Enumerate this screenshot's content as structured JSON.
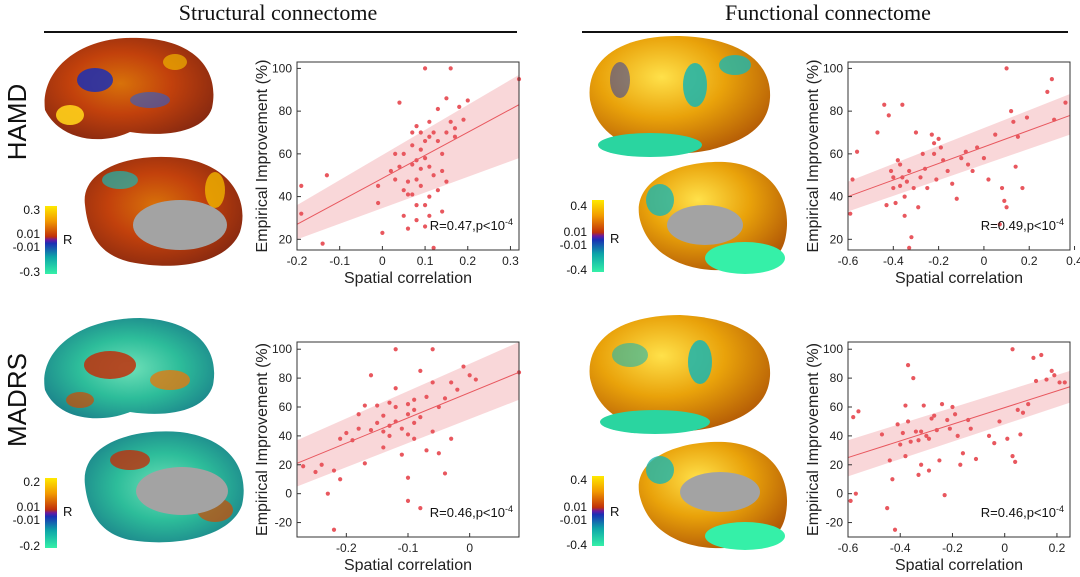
{
  "headers": {
    "structural": "Structural connectome",
    "functional": "Functional connectome"
  },
  "rows": {
    "hamd": "HAMD",
    "madrs": "MADRS"
  },
  "colorbars": [
    {
      "id": "s-hamd",
      "top": "0.3",
      "upper": "0.01",
      "lower": "-0.01",
      "bottom": "-0.3",
      "label": "R"
    },
    {
      "id": "f-hamd",
      "top": "0.4",
      "upper": "0.01",
      "lower": "-0.01",
      "bottom": "-0.4",
      "label": "R"
    },
    {
      "id": "s-madrs",
      "top": "0.2",
      "upper": "0.01",
      "lower": "-0.01",
      "bottom": "-0.2",
      "label": "R"
    },
    {
      "id": "f-madrs",
      "top": "0.4",
      "upper": "0.01",
      "lower": "-0.01",
      "bottom": "-0.4",
      "label": "R"
    }
  ],
  "colors": {
    "points": "#e8575e",
    "fit": "#e8575e",
    "band": "#f7c9cc",
    "bar_top": "#ffe600",
    "bar_mid_hi": "#d24a00",
    "bar_mid_lo": "#1b2fb4",
    "bar_bottom": "#35f0a8"
  },
  "chart_data": [
    {
      "id": "structural-hamd",
      "type": "scatter",
      "xlabel": "Spatial correlation",
      "ylabel": "Empirical Improvement (%)",
      "xlim": [
        -0.2,
        0.32
      ],
      "ylim": [
        15,
        103
      ],
      "xticks": [
        -0.2,
        -0.1,
        0,
        0.1,
        0.2,
        0.3
      ],
      "xtick_labels": [
        "-0.2",
        "-0.1",
        "0",
        "0.1",
        "0.2",
        "0.3"
      ],
      "yticks": [
        20,
        40,
        60,
        80,
        100
      ],
      "annotation": "R=0.47,p<10",
      "annotation_exp": "-4",
      "fit": {
        "x0": -0.2,
        "y0": 27,
        "x1": 0.32,
        "y1": 83,
        "band_low": [
          20,
          58
        ],
        "band_high": [
          36,
          97
        ]
      },
      "points": [
        [
          -0.19,
          32
        ],
        [
          -0.19,
          45
        ],
        [
          -0.14,
          18
        ],
        [
          -0.13,
          50
        ],
        [
          -0.01,
          37
        ],
        [
          -0.01,
          45
        ],
        [
          0.0,
          23
        ],
        [
          0.02,
          52
        ],
        [
          0.03,
          48
        ],
        [
          0.03,
          60
        ],
        [
          0.04,
          84
        ],
        [
          0.04,
          54
        ],
        [
          0.05,
          60
        ],
        [
          0.05,
          31
        ],
        [
          0.05,
          43
        ],
        [
          0.06,
          41
        ],
        [
          0.06,
          47
        ],
        [
          0.06,
          25
        ],
        [
          0.07,
          64
        ],
        [
          0.07,
          70
        ],
        [
          0.07,
          55
        ],
        [
          0.07,
          41
        ],
        [
          0.08,
          73
        ],
        [
          0.08,
          57
        ],
        [
          0.08,
          48
        ],
        [
          0.08,
          36
        ],
        [
          0.08,
          29
        ],
        [
          0.09,
          70
        ],
        [
          0.09,
          62
        ],
        [
          0.09,
          53
        ],
        [
          0.09,
          45
        ],
        [
          0.1,
          100
        ],
        [
          0.1,
          66
        ],
        [
          0.1,
          58
        ],
        [
          0.1,
          36
        ],
        [
          0.1,
          26
        ],
        [
          0.11,
          75
        ],
        [
          0.11,
          68
        ],
        [
          0.11,
          54
        ],
        [
          0.11,
          40
        ],
        [
          0.11,
          31
        ],
        [
          0.12,
          70
        ],
        [
          0.12,
          50
        ],
        [
          0.12,
          16
        ],
        [
          0.13,
          66
        ],
        [
          0.13,
          81
        ],
        [
          0.13,
          43
        ],
        [
          0.14,
          60
        ],
        [
          0.14,
          52
        ],
        [
          0.14,
          33
        ],
        [
          0.15,
          86
        ],
        [
          0.15,
          70
        ],
        [
          0.15,
          47
        ],
        [
          0.16,
          100
        ],
        [
          0.16,
          75
        ],
        [
          0.17,
          68
        ],
        [
          0.17,
          72
        ],
        [
          0.18,
          82
        ],
        [
          0.19,
          76
        ],
        [
          0.2,
          85
        ],
        [
          0.32,
          95
        ]
      ]
    },
    {
      "id": "functional-hamd",
      "type": "scatter",
      "xlabel": "Spatial correlation",
      "ylabel": "Empirical Improvement (%)",
      "xlim": [
        -0.6,
        0.38
      ],
      "ylim": [
        15,
        103
      ],
      "xticks": [
        -0.6,
        -0.4,
        -0.2,
        0,
        0.2,
        0.4
      ],
      "xtick_labels": [
        "-0.6",
        "-0.4",
        "-0.2",
        "0",
        "0.2",
        "0.4"
      ],
      "yticks": [
        20,
        40,
        60,
        80,
        100
      ],
      "annotation": "R=0.49,p<10",
      "annotation_exp": "-4",
      "fit": {
        "x0": -0.6,
        "y0": 40,
        "x1": 0.38,
        "y1": 78,
        "band_low": [
          33,
          69
        ],
        "band_high": [
          47,
          88
        ]
      },
      "points": [
        [
          -0.59,
          32
        ],
        [
          -0.58,
          48
        ],
        [
          -0.56,
          61
        ],
        [
          -0.47,
          70
        ],
        [
          -0.44,
          83
        ],
        [
          -0.43,
          36
        ],
        [
          -0.42,
          78
        ],
        [
          -0.41,
          52
        ],
        [
          -0.4,
          49
        ],
        [
          -0.4,
          44
        ],
        [
          -0.39,
          37
        ],
        [
          -0.38,
          57
        ],
        [
          -0.37,
          55
        ],
        [
          -0.37,
          45
        ],
        [
          -0.36,
          83
        ],
        [
          -0.36,
          49
        ],
        [
          -0.35,
          40
        ],
        [
          -0.35,
          31
        ],
        [
          -0.34,
          47
        ],
        [
          -0.33,
          52
        ],
        [
          -0.33,
          16
        ],
        [
          -0.32,
          21
        ],
        [
          -0.31,
          44
        ],
        [
          -0.3,
          70
        ],
        [
          -0.29,
          35
        ],
        [
          -0.28,
          49
        ],
        [
          -0.27,
          60
        ],
        [
          -0.26,
          53
        ],
        [
          -0.25,
          44
        ],
        [
          -0.23,
          69
        ],
        [
          -0.22,
          65
        ],
        [
          -0.22,
          60
        ],
        [
          -0.21,
          48
        ],
        [
          -0.2,
          67
        ],
        [
          -0.19,
          63
        ],
        [
          -0.18,
          57
        ],
        [
          -0.16,
          52
        ],
        [
          -0.14,
          46
        ],
        [
          -0.12,
          39
        ],
        [
          -0.1,
          58
        ],
        [
          -0.08,
          61
        ],
        [
          -0.07,
          55
        ],
        [
          -0.05,
          52
        ],
        [
          -0.03,
          63
        ],
        [
          0.0,
          58
        ],
        [
          0.02,
          48
        ],
        [
          0.05,
          69
        ],
        [
          0.07,
          27
        ],
        [
          0.08,
          44
        ],
        [
          0.09,
          38
        ],
        [
          0.1,
          100
        ],
        [
          0.1,
          35
        ],
        [
          0.12,
          80
        ],
        [
          0.13,
          75
        ],
        [
          0.14,
          54
        ],
        [
          0.15,
          68
        ],
        [
          0.17,
          44
        ],
        [
          0.19,
          77
        ],
        [
          0.28,
          89
        ],
        [
          0.3,
          95
        ],
        [
          0.31,
          76
        ],
        [
          0.36,
          84
        ]
      ]
    },
    {
      "id": "structural-madrs",
      "type": "scatter",
      "xlabel": "Spatial correlation",
      "ylabel": "Empirical Improvement (%)",
      "xlim": [
        -0.28,
        0.08
      ],
      "ylim": [
        -30,
        105
      ],
      "xticks": [
        -0.2,
        -0.1,
        0
      ],
      "xtick_labels": [
        "-0.2",
        "-0.1",
        "0"
      ],
      "yticks": [
        -20,
        0,
        20,
        40,
        60,
        80,
        100
      ],
      "annotation": "R=0.46,p<10",
      "annotation_exp": "-4",
      "fit": {
        "x0": -0.28,
        "y0": 21,
        "x1": 0.08,
        "y1": 84,
        "band_low": [
          5,
          65
        ],
        "band_high": [
          37,
          105
        ]
      },
      "points": [
        [
          -0.27,
          19
        ],
        [
          -0.25,
          15
        ],
        [
          -0.24,
          20
        ],
        [
          -0.23,
          0
        ],
        [
          -0.22,
          -25
        ],
        [
          -0.22,
          16
        ],
        [
          -0.21,
          10
        ],
        [
          -0.21,
          38
        ],
        [
          -0.2,
          42
        ],
        [
          -0.19,
          37
        ],
        [
          -0.18,
          45
        ],
        [
          -0.18,
          55
        ],
        [
          -0.17,
          21
        ],
        [
          -0.17,
          61
        ],
        [
          -0.16,
          44
        ],
        [
          -0.16,
          82
        ],
        [
          -0.15,
          61
        ],
        [
          -0.15,
          49
        ],
        [
          -0.14,
          43
        ],
        [
          -0.14,
          32
        ],
        [
          -0.14,
          54
        ],
        [
          -0.13,
          47
        ],
        [
          -0.13,
          63
        ],
        [
          -0.13,
          40
        ],
        [
          -0.12,
          60
        ],
        [
          -0.12,
          100
        ],
        [
          -0.12,
          73
        ],
        [
          -0.12,
          50
        ],
        [
          -0.11,
          45
        ],
        [
          -0.11,
          27
        ],
        [
          -0.1,
          62
        ],
        [
          -0.1,
          55
        ],
        [
          -0.1,
          41
        ],
        [
          -0.1,
          11
        ],
        [
          -0.1,
          -5
        ],
        [
          -0.09,
          65
        ],
        [
          -0.09,
          58
        ],
        [
          -0.09,
          49
        ],
        [
          -0.09,
          38
        ],
        [
          -0.08,
          -10
        ],
        [
          -0.08,
          85
        ],
        [
          -0.08,
          53
        ],
        [
          -0.07,
          67
        ],
        [
          -0.07,
          30
        ],
        [
          -0.06,
          100
        ],
        [
          -0.06,
          77
        ],
        [
          -0.06,
          43
        ],
        [
          -0.05,
          60
        ],
        [
          -0.05,
          28
        ],
        [
          -0.04,
          66
        ],
        [
          -0.04,
          14
        ],
        [
          -0.03,
          77
        ],
        [
          -0.03,
          38
        ],
        [
          -0.02,
          72
        ],
        [
          -0.01,
          88
        ],
        [
          0.0,
          82
        ],
        [
          0.01,
          79
        ],
        [
          0.08,
          84
        ]
      ]
    },
    {
      "id": "functional-madrs",
      "type": "scatter",
      "xlabel": "Spatial correlation",
      "ylabel": "Empirical Improvement (%)",
      "xlim": [
        -0.6,
        0.25
      ],
      "ylim": [
        -30,
        105
      ],
      "xticks": [
        -0.6,
        -0.4,
        -0.2,
        0,
        0.2
      ],
      "xtick_labels": [
        "-0.6",
        "-0.4",
        "-0.2",
        "0",
        "0.2"
      ],
      "yticks": [
        -20,
        0,
        20,
        40,
        60,
        80,
        100
      ],
      "annotation": "R=0.46,p<10",
      "annotation_exp": "-4",
      "fit": {
        "x0": -0.6,
        "y0": 25,
        "x1": 0.25,
        "y1": 74,
        "band_low": [
          12,
          63
        ],
        "band_high": [
          37,
          85
        ]
      },
      "points": [
        [
          -0.59,
          -5
        ],
        [
          -0.58,
          53
        ],
        [
          -0.57,
          0
        ],
        [
          -0.56,
          57
        ],
        [
          -0.47,
          41
        ],
        [
          -0.45,
          -10
        ],
        [
          -0.44,
          23
        ],
        [
          -0.43,
          10
        ],
        [
          -0.42,
          -25
        ],
        [
          -0.41,
          48
        ],
        [
          -0.4,
          34
        ],
        [
          -0.39,
          42
        ],
        [
          -0.38,
          26
        ],
        [
          -0.38,
          61
        ],
        [
          -0.37,
          50
        ],
        [
          -0.37,
          89
        ],
        [
          -0.36,
          36
        ],
        [
          -0.35,
          80
        ],
        [
          -0.34,
          43
        ],
        [
          -0.33,
          37
        ],
        [
          -0.33,
          13
        ],
        [
          -0.32,
          20
        ],
        [
          -0.32,
          43
        ],
        [
          -0.31,
          61
        ],
        [
          -0.3,
          40
        ],
        [
          -0.29,
          38
        ],
        [
          -0.29,
          16
        ],
        [
          -0.28,
          52
        ],
        [
          -0.27,
          54
        ],
        [
          -0.26,
          44
        ],
        [
          -0.25,
          23
        ],
        [
          -0.24,
          62
        ],
        [
          -0.23,
          -1
        ],
        [
          -0.22,
          51
        ],
        [
          -0.21,
          45
        ],
        [
          -0.2,
          60
        ],
        [
          -0.19,
          55
        ],
        [
          -0.18,
          40
        ],
        [
          -0.17,
          20
        ],
        [
          -0.16,
          28
        ],
        [
          -0.14,
          51
        ],
        [
          -0.13,
          45
        ],
        [
          -0.11,
          24
        ],
        [
          -0.06,
          40
        ],
        [
          -0.04,
          35
        ],
        [
          -0.02,
          50
        ],
        [
          0.01,
          38
        ],
        [
          0.03,
          100
        ],
        [
          0.03,
          26
        ],
        [
          0.04,
          22
        ],
        [
          0.05,
          58
        ],
        [
          0.06,
          41
        ],
        [
          0.07,
          56
        ],
        [
          0.09,
          62
        ],
        [
          0.11,
          94
        ],
        [
          0.12,
          78
        ],
        [
          0.14,
          96
        ],
        [
          0.16,
          79
        ],
        [
          0.18,
          85
        ],
        [
          0.19,
          82
        ],
        [
          0.21,
          77
        ],
        [
          0.23,
          77
        ]
      ]
    }
  ]
}
